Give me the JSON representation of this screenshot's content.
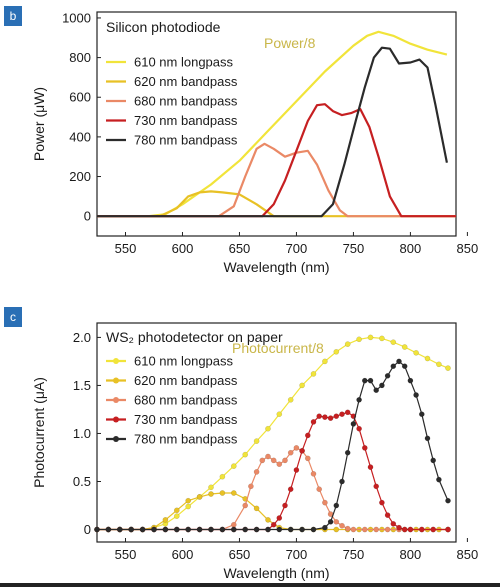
{
  "chart_data": [
    {
      "type": "line",
      "panel_label": "b",
      "title": "Silicon photodiode",
      "xlabel": "Wavelength (nm)",
      "ylabel": "Power (μW)",
      "xlim": [
        525,
        840
      ],
      "ylim": [
        -100,
        1030
      ],
      "xticks": [
        550,
        600,
        650,
        700,
        750,
        800,
        850
      ],
      "yticks": [
        0,
        200,
        400,
        600,
        800,
        1000
      ],
      "legend_position": "top-left",
      "annotation": "Power/8",
      "markers": false,
      "series": [
        {
          "name": "610 nm longpass",
          "color": "#f1e43a",
          "x": [
            525,
            570,
            585,
            600,
            625,
            650,
            675,
            700,
            725,
            750,
            762,
            772,
            785,
            800,
            815,
            832
          ],
          "y": [
            0,
            0,
            10,
            60,
            160,
            280,
            430,
            580,
            730,
            860,
            910,
            930,
            910,
            870,
            840,
            815
          ]
        },
        {
          "name": "620 nm bandpass",
          "color": "#e8c125",
          "x": [
            525,
            580,
            595,
            605,
            615,
            625,
            635,
            650,
            665,
            680,
            840
          ],
          "y": [
            0,
            0,
            40,
            100,
            120,
            125,
            120,
            110,
            60,
            0,
            0
          ]
        },
        {
          "name": "680 nm bandpass",
          "color": "#ea8966",
          "x": [
            525,
            632,
            645,
            655,
            665,
            672,
            680,
            690,
            700,
            710,
            718,
            728,
            738,
            745,
            840
          ],
          "y": [
            0,
            0,
            50,
            200,
            340,
            365,
            340,
            300,
            320,
            330,
            260,
            130,
            30,
            0,
            0
          ]
        },
        {
          "name": "730 nm bandpass",
          "color": "#c61f21",
          "x": [
            525,
            670,
            680,
            690,
            700,
            710,
            718,
            725,
            732,
            740,
            748,
            756,
            764,
            772,
            782,
            792,
            840
          ],
          "y": [
            0,
            0,
            60,
            180,
            330,
            480,
            560,
            565,
            530,
            510,
            520,
            540,
            450,
            300,
            100,
            0,
            0
          ]
        },
        {
          "name": "780 nm bandpass",
          "color": "#2b2b2b",
          "x": [
            525,
            722,
            732,
            742,
            752,
            760,
            768,
            775,
            782,
            790,
            800,
            808,
            815,
            822,
            832
          ],
          "y": [
            0,
            0,
            60,
            260,
            480,
            650,
            800,
            850,
            845,
            770,
            775,
            790,
            750,
            560,
            270
          ]
        }
      ]
    },
    {
      "type": "line",
      "panel_label": "c",
      "title": "WS₂ photodetector on paper",
      "xlabel": "Wavelength (nm)",
      "ylabel": "Photocurrent (μA)",
      "xlim": [
        525,
        840
      ],
      "ylim": [
        -0.13,
        2.15
      ],
      "xticks": [
        550,
        600,
        650,
        700,
        750,
        800,
        850
      ],
      "yticks": [
        0,
        0.5,
        1.0,
        1.5,
        2.0
      ],
      "ytick_labels": [
        "0",
        "0.5",
        "1.0",
        "1.5",
        "2.0"
      ],
      "legend_position": "top-left",
      "annotation": "Photocurrent/8",
      "markers": true,
      "series": [
        {
          "name": "610 nm longpass",
          "color": "#f1e43a",
          "x": [
            525,
            535,
            545,
            555,
            565,
            575,
            585,
            595,
            605,
            615,
            625,
            635,
            645,
            655,
            665,
            675,
            685,
            695,
            705,
            715,
            725,
            735,
            745,
            755,
            765,
            775,
            785,
            795,
            805,
            815,
            825,
            833
          ],
          "y": [
            0,
            0,
            0,
            0,
            0,
            0.02,
            0.06,
            0.14,
            0.24,
            0.34,
            0.44,
            0.55,
            0.66,
            0.78,
            0.92,
            1.05,
            1.2,
            1.35,
            1.5,
            1.62,
            1.75,
            1.85,
            1.93,
            1.98,
            2.0,
            1.99,
            1.95,
            1.9,
            1.84,
            1.78,
            1.72,
            1.68
          ]
        },
        {
          "name": "620 nm bandpass",
          "color": "#e8c125",
          "x": [
            525,
            535,
            545,
            555,
            565,
            575,
            585,
            595,
            605,
            615,
            625,
            635,
            645,
            655,
            665,
            675,
            685,
            695,
            705,
            715,
            725,
            735,
            745,
            755,
            765,
            775,
            785,
            795,
            805,
            815,
            825,
            833
          ],
          "y": [
            0,
            0,
            0,
            0,
            0,
            0.02,
            0.1,
            0.2,
            0.3,
            0.34,
            0.37,
            0.38,
            0.38,
            0.32,
            0.22,
            0.1,
            0.02,
            0,
            0,
            0,
            0,
            0,
            0,
            0,
            0,
            0,
            0,
            0,
            0,
            0,
            0,
            0
          ]
        },
        {
          "name": "680 nm bandpass",
          "color": "#ea8966",
          "x": [
            525,
            535,
            545,
            555,
            565,
            575,
            585,
            595,
            605,
            615,
            625,
            635,
            645,
            655,
            660,
            665,
            670,
            675,
            680,
            685,
            690,
            695,
            700,
            705,
            710,
            715,
            720,
            725,
            730,
            735,
            740,
            745,
            750,
            760,
            770,
            780,
            790,
            800,
            810,
            820,
            833
          ],
          "y": [
            0,
            0,
            0,
            0,
            0,
            0,
            0,
            0,
            0,
            0,
            0,
            0,
            0.05,
            0.25,
            0.45,
            0.6,
            0.72,
            0.76,
            0.72,
            0.68,
            0.72,
            0.8,
            0.85,
            0.82,
            0.74,
            0.58,
            0.42,
            0.28,
            0.16,
            0.08,
            0.04,
            0.01,
            0,
            0,
            0,
            0,
            0,
            0,
            0,
            0,
            0
          ]
        },
        {
          "name": "730 nm bandpass",
          "color": "#c61f21",
          "x": [
            525,
            535,
            545,
            555,
            565,
            575,
            585,
            595,
            605,
            615,
            625,
            635,
            645,
            655,
            665,
            675,
            680,
            685,
            690,
            695,
            700,
            705,
            710,
            715,
            720,
            725,
            730,
            735,
            740,
            745,
            750,
            755,
            760,
            765,
            770,
            775,
            780,
            785,
            790,
            795,
            800,
            810,
            820,
            833
          ],
          "y": [
            0,
            0,
            0,
            0,
            0,
            0,
            0,
            0,
            0,
            0,
            0,
            0,
            0,
            0,
            0,
            0,
            0.05,
            0.12,
            0.25,
            0.42,
            0.62,
            0.82,
            0.98,
            1.12,
            1.18,
            1.17,
            1.16,
            1.18,
            1.2,
            1.22,
            1.18,
            1.05,
            0.85,
            0.65,
            0.45,
            0.28,
            0.15,
            0.06,
            0.02,
            0,
            0,
            0,
            0,
            0
          ]
        },
        {
          "name": "780 nm bandpass",
          "color": "#2b2b2b",
          "x": [
            525,
            535,
            545,
            555,
            565,
            575,
            585,
            595,
            605,
            615,
            625,
            635,
            645,
            655,
            665,
            675,
            685,
            695,
            705,
            715,
            725,
            730,
            735,
            740,
            745,
            750,
            755,
            760,
            765,
            770,
            775,
            780,
            785,
            790,
            795,
            800,
            805,
            810,
            815,
            820,
            825,
            833
          ],
          "y": [
            0,
            0,
            0,
            0,
            0,
            0,
            0,
            0,
            0,
            0,
            0,
            0,
            0,
            0,
            0,
            0,
            0,
            0,
            0,
            0,
            0.02,
            0.08,
            0.25,
            0.5,
            0.8,
            1.1,
            1.35,
            1.55,
            1.55,
            1.45,
            1.5,
            1.6,
            1.7,
            1.75,
            1.7,
            1.55,
            1.4,
            1.2,
            0.95,
            0.72,
            0.52,
            0.3
          ]
        }
      ]
    }
  ]
}
